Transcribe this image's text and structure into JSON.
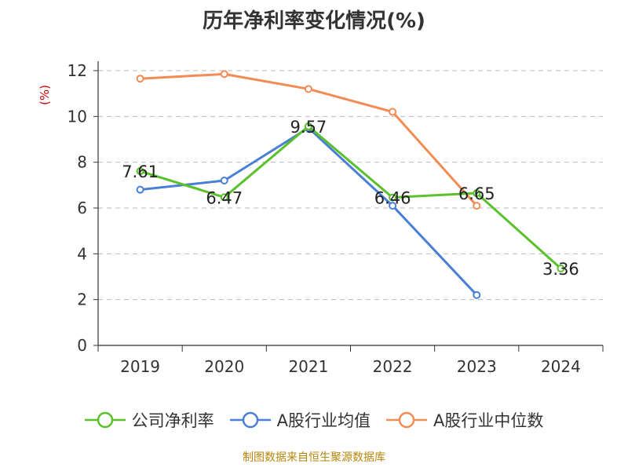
{
  "page": {
    "source_note": "制图数据来自恒生聚源数据库"
  },
  "chart_data": {
    "type": "line",
    "title": "历年净利率变化情况(%)",
    "ylabel": "(%)",
    "xlabel": "",
    "categories": [
      "2019",
      "2020",
      "2021",
      "2022",
      "2023",
      "2024"
    ],
    "ylim": [
      0,
      12
    ],
    "yticks": [
      0,
      2,
      4,
      6,
      8,
      10,
      12
    ],
    "grid": true,
    "legend_position": "bottom",
    "series": [
      {
        "name": "公司净利率",
        "color": "#5ac02b",
        "values": [
          7.61,
          6.47,
          9.57,
          6.46,
          6.65,
          3.36
        ],
        "labels": [
          "7.61",
          "6.47",
          "9.57",
          "6.46",
          "6.65",
          "3.36"
        ]
      },
      {
        "name": "A股行业均值",
        "color": "#4a7fd6",
        "values": [
          6.8,
          7.2,
          9.5,
          6.1,
          2.2,
          null
        ]
      },
      {
        "name": "A股行业中位数",
        "color": "#f28b54",
        "values": [
          11.65,
          11.85,
          11.2,
          10.2,
          6.1,
          null
        ]
      }
    ]
  }
}
